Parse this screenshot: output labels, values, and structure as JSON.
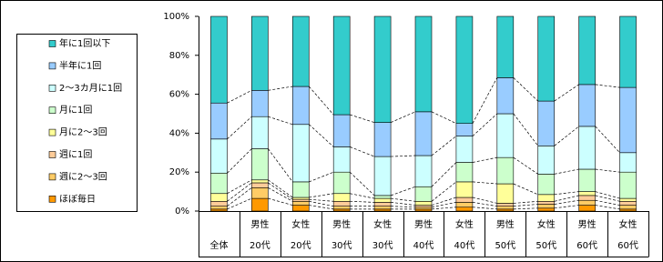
{
  "chart_data": {
    "type": "stacked_bar_100",
    "categories": [
      [
        "全体"
      ],
      [
        "男性",
        "20代"
      ],
      [
        "女性",
        "20代"
      ],
      [
        "男性",
        "30代"
      ],
      [
        "女性",
        "30代"
      ],
      [
        "男性",
        "40代"
      ],
      [
        "女性",
        "40代"
      ],
      [
        "男性",
        "50代"
      ],
      [
        "女性",
        "50代"
      ],
      [
        "男性",
        "60代"
      ],
      [
        "女性",
        "60代"
      ]
    ],
    "series": [
      {
        "name": "ほぼ毎日",
        "color": "#FF9900",
        "values": [
          1,
          6.5,
          3,
          1,
          1,
          1,
          2,
          1,
          1.5,
          3,
          1
        ]
      },
      {
        "name": "週に2～3回",
        "color": "#FFCC66",
        "values": [
          1.5,
          5.5,
          2,
          1.5,
          1.5,
          1,
          2.5,
          1.5,
          2,
          2.5,
          2
        ]
      },
      {
        "name": "週に1回",
        "color": "#FFCC99",
        "values": [
          2.5,
          2.5,
          1,
          2.5,
          2,
          1,
          2.5,
          1.5,
          1.5,
          2.5,
          2
        ]
      },
      {
        "name": "月に2～3回",
        "color": "#FFFF99",
        "values": [
          4,
          1.5,
          1,
          4,
          2,
          2,
          8,
          10,
          3.5,
          2,
          1.5
        ]
      },
      {
        "name": "月に1回",
        "color": "#CCFFCC",
        "values": [
          10.5,
          16,
          8,
          11,
          1.5,
          7.5,
          10,
          13.5,
          10.5,
          11.5,
          13.5
        ]
      },
      {
        "name": "2～3カ月に1回",
        "color": "#CCFFFF",
        "values": [
          17.5,
          16.5,
          29.5,
          13,
          20,
          16,
          13.5,
          22.5,
          14.5,
          22,
          10
        ]
      },
      {
        "name": "半年に1回",
        "color": "#99CCFF",
        "values": [
          18.5,
          13.5,
          19.5,
          16.5,
          17.5,
          22.5,
          6.5,
          18.5,
          23,
          21.5,
          33.5
        ]
      },
      {
        "name": "年に1回以下",
        "color": "#33CCCC",
        "values": [
          44.5,
          38,
          36,
          50.5,
          54.5,
          49,
          55,
          31.5,
          43.5,
          35,
          36.5
        ]
      }
    ],
    "ylim": [
      0,
      100
    ],
    "yticks": [
      {
        "value": 0,
        "label": "0%"
      },
      {
        "value": 20,
        "label": "20%"
      },
      {
        "value": 40,
        "label": "40%"
      },
      {
        "value": 60,
        "label": "60%"
      },
      {
        "value": 80,
        "label": "80%"
      },
      {
        "value": 100,
        "label": "100%"
      }
    ],
    "series_lines": true
  }
}
